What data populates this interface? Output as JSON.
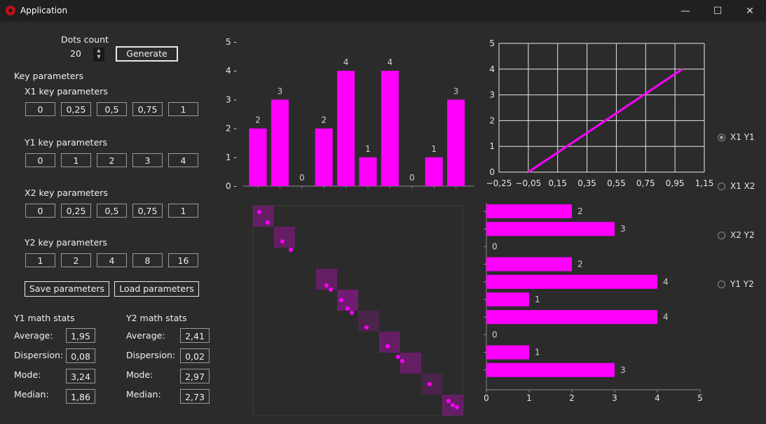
{
  "window": {
    "title": "Application",
    "minimize_glyph": "—",
    "maximize_glyph": "☐",
    "close_glyph": "✕"
  },
  "dots": {
    "label": "Dots count",
    "value": "20",
    "generate_label": "Generate"
  },
  "key_params": {
    "title": "Key parameters",
    "x1": {
      "label": "X1 key parameters",
      "values": [
        "0",
        "0,25",
        "0,5",
        "0,75",
        "1"
      ]
    },
    "y1": {
      "label": "Y1 key parameters",
      "values": [
        "0",
        "1",
        "2",
        "3",
        "4"
      ]
    },
    "x2": {
      "label": "X2 key parameters",
      "values": [
        "0",
        "0,25",
        "0,5",
        "0,75",
        "1"
      ]
    },
    "y2": {
      "label": "Y2 key parameters",
      "values": [
        "1",
        "2",
        "4",
        "8",
        "16"
      ]
    },
    "save_label": "Save parameters",
    "load_label": "Load parameters"
  },
  "y1_stats": {
    "title": "Y1 math stats",
    "rows": [
      {
        "label": "Average:",
        "value": "1,95"
      },
      {
        "label": "Dispersion:",
        "value": "0,08"
      },
      {
        "label": "Mode:",
        "value": "3,24"
      },
      {
        "label": "Median:",
        "value": "1,86"
      }
    ]
  },
  "y2_stats": {
    "title": "Y2 math stats",
    "rows": [
      {
        "label": "Average:",
        "value": "2,41"
      },
      {
        "label": "Dispersion:",
        "value": "0,02"
      },
      {
        "label": "Mode:",
        "value": "2,97"
      },
      {
        "label": "Median:",
        "value": "2,73"
      }
    ]
  },
  "radios": [
    {
      "label": "X1 Y1",
      "checked": true
    },
    {
      "label": "X1 X2",
      "checked": false
    },
    {
      "label": "X2 Y2",
      "checked": false
    },
    {
      "label": "Y1 Y2",
      "checked": false
    }
  ],
  "colors": {
    "accent": "#ff00ff",
    "background": "#2b2b2b",
    "titlebar": "#202020",
    "grid": "#e8e8e8"
  },
  "chart_data": [
    {
      "type": "bar",
      "orientation": "vertical",
      "values": [
        2,
        3,
        0,
        2,
        4,
        1,
        4,
        0,
        1,
        3
      ],
      "ylim": [
        0,
        5
      ],
      "yticks": [
        "0",
        "1",
        "2",
        "3",
        "4",
        "5"
      ],
      "data_labels": true
    },
    {
      "type": "line",
      "grid": true,
      "x": [
        -0.05,
        1.0
      ],
      "y": [
        0,
        4
      ],
      "xlim": [
        -0.25,
        1.15
      ],
      "ylim": [
        0,
        5
      ],
      "xticks": [
        "−0,25",
        "−0,05",
        "0,15",
        "0,35",
        "0,55",
        "0,75",
        "0,95",
        "1,15"
      ],
      "yticks": [
        "0",
        "1",
        "2",
        "3",
        "4",
        "5"
      ]
    },
    {
      "type": "scatter",
      "x": [
        0.03,
        0.07,
        0.14,
        0.18,
        0.35,
        0.37,
        0.42,
        0.45,
        0.47,
        0.54,
        0.64,
        0.69,
        0.71,
        0.84,
        0.93,
        0.95,
        0.97
      ],
      "y": [
        0.97,
        0.92,
        0.83,
        0.79,
        0.62,
        0.6,
        0.55,
        0.51,
        0.49,
        0.42,
        0.33,
        0.28,
        0.26,
        0.15,
        0.07,
        0.05,
        0.04
      ],
      "cells": [
        {
          "col": 0,
          "row": 0,
          "opacity": 0.45
        },
        {
          "col": 1,
          "row": 1,
          "opacity": 0.45
        },
        {
          "col": 3,
          "row": 3,
          "opacity": 0.45
        },
        {
          "col": 4,
          "row": 4,
          "opacity": 0.55
        },
        {
          "col": 5,
          "row": 5,
          "opacity": 0.25
        },
        {
          "col": 6,
          "row": 6,
          "opacity": 0.45
        },
        {
          "col": 7,
          "row": 7,
          "opacity": 0.45
        },
        {
          "col": 8,
          "row": 8,
          "opacity": 0.25
        },
        {
          "col": 9,
          "row": 9,
          "opacity": 0.45
        }
      ]
    },
    {
      "type": "bar",
      "orientation": "horizontal",
      "values": [
        2,
        3,
        0,
        2,
        4,
        1,
        4,
        0,
        1,
        3
      ],
      "xlim": [
        0,
        5
      ],
      "xticks": [
        "0",
        "1",
        "2",
        "3",
        "4",
        "5"
      ],
      "data_labels": true
    }
  ]
}
